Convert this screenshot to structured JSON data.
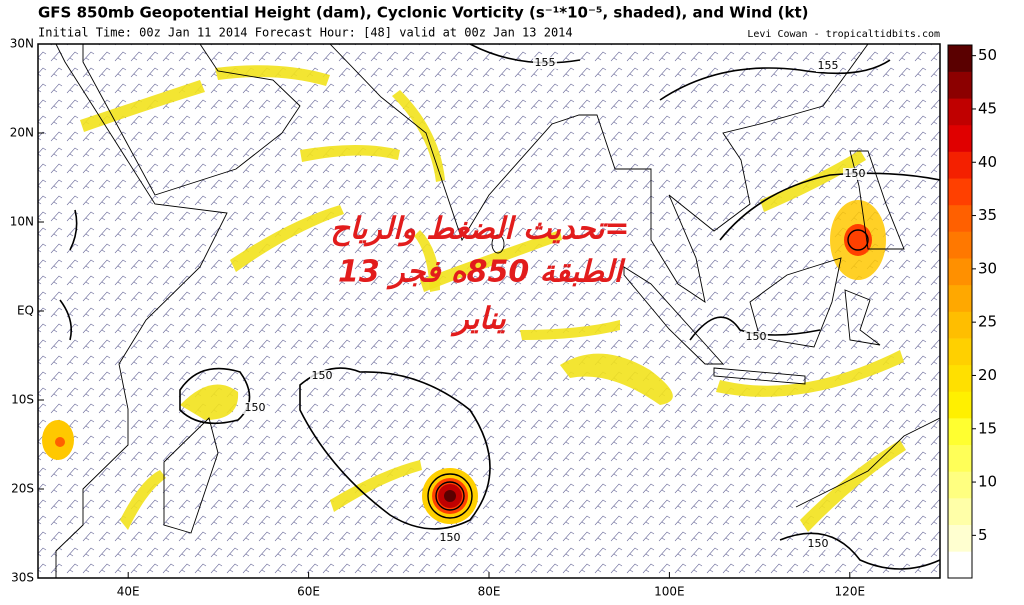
{
  "header": {
    "title": "GFS 850mb Geopotential Height (dam), Cyclonic Vorticity (s⁻¹*10⁻⁵, shaded), and Wind (kt)",
    "subtitle": "Initial Time: 00z Jan 11 2014 Forecast Hour: [48] valid at 00z Jan 13 2014",
    "credit": "Levi Cowan - tropicaltidbits.com"
  },
  "map": {
    "xlim": [
      30,
      130
    ],
    "ylim": [
      -30,
      30
    ],
    "xticks": [
      {
        "value": 40,
        "label": "40E"
      },
      {
        "value": 60,
        "label": "60E"
      },
      {
        "value": 80,
        "label": "80E"
      },
      {
        "value": 100,
        "label": "100E"
      },
      {
        "value": 120,
        "label": "120E"
      }
    ],
    "yticks": [
      {
        "value": 30,
        "label": "30N"
      },
      {
        "value": 20,
        "label": "20N"
      },
      {
        "value": 10,
        "label": "10N"
      },
      {
        "value": 0,
        "label": "EQ"
      },
      {
        "value": -10,
        "label": "10S"
      },
      {
        "value": -20,
        "label": "20S"
      },
      {
        "value": -30,
        "label": "30S"
      }
    ],
    "contour_labels": [
      155,
      155,
      150,
      150,
      150,
      150,
      150,
      150
    ]
  },
  "colorbar": {
    "ylim": [
      1,
      51
    ],
    "yticks": [
      5,
      10,
      15,
      20,
      25,
      30,
      35,
      40,
      45,
      50
    ],
    "colors": [
      "#ffffff",
      "#ffffd0",
      "#ffffa8",
      "#ffff80",
      "#ffff58",
      "#ffff30",
      "#fff000",
      "#ffe000",
      "#ffd000",
      "#ffbe00",
      "#ffa800",
      "#ff9000",
      "#ff7800",
      "#ff6000",
      "#ff4000",
      "#f42000",
      "#e00000",
      "#c00000",
      "#8c0000",
      "#5a0000"
    ]
  },
  "annotation": {
    "lines": [
      "=تحديث الضغط والرياح",
      "الطبقة 850ه فجر 13",
      "يناير"
    ]
  }
}
